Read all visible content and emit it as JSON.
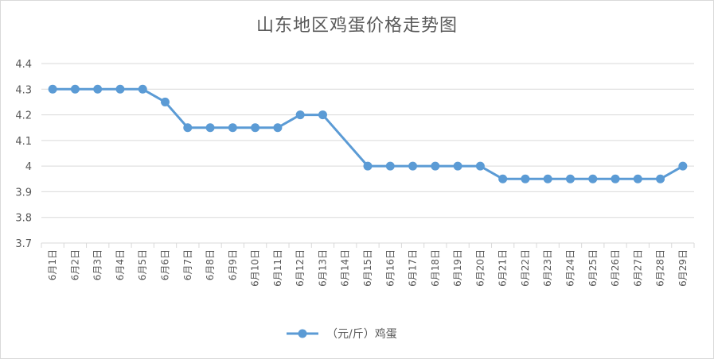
{
  "chart_data": {
    "type": "line",
    "title": "山东地区鸡蛋价格走势图",
    "xlabel": "",
    "ylabel": "",
    "ylim": [
      3.7,
      4.4
    ],
    "yticks": [
      "4.4",
      "4.3",
      "4.2",
      "4.1",
      "4",
      "3.9",
      "3.8",
      "3.7"
    ],
    "grid": true,
    "legend_position": "bottom",
    "categories": [
      "6月1日",
      "6月2日",
      "6月3日",
      "6月4日",
      "6月5日",
      "6月6日",
      "6月7日",
      "6月8日",
      "6月9日",
      "6月10日",
      "6月11日",
      "6月12日",
      "6月13日",
      "6月14日",
      "6月15日",
      "6月16日",
      "6月17日",
      "6月18日",
      "6月19日",
      "6月20日",
      "6月21日",
      "6月22日",
      "6月23日",
      "6月24日",
      "6月25日",
      "6月26日",
      "6月27日",
      "6月28日",
      "6月29日"
    ],
    "series": [
      {
        "name": "（元/斤）鸡蛋",
        "color": "#5b9bd5",
        "values": [
          4.3,
          4.3,
          4.3,
          4.3,
          4.3,
          4.25,
          4.15,
          4.15,
          4.15,
          4.15,
          4.15,
          4.2,
          4.2,
          null,
          4.0,
          4.0,
          4.0,
          4.0,
          4.0,
          4.0,
          3.95,
          3.95,
          3.95,
          3.95,
          3.95,
          3.95,
          3.95,
          3.95,
          4.0
        ]
      }
    ]
  }
}
